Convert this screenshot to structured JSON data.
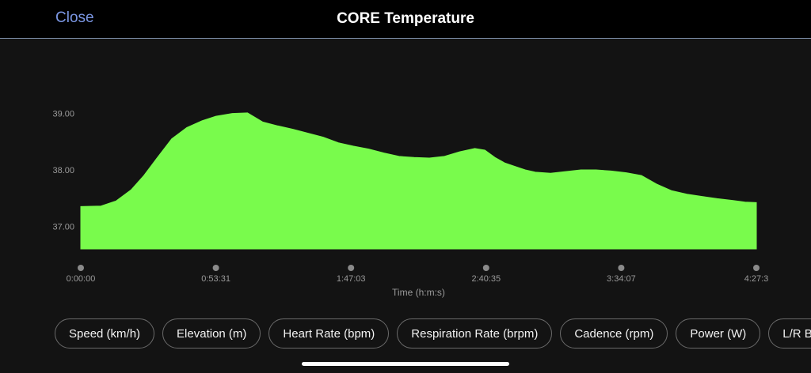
{
  "header": {
    "close_label": "Close",
    "title": "CORE Temperature"
  },
  "chart_data": {
    "type": "area",
    "title": "CORE Temperature",
    "xlabel": "Time (h:m:s)",
    "ylabel": "",
    "x_tick_labels": [
      "0:00:00",
      "0:53:31",
      "1:47:03",
      "2:40:35",
      "3:34:07",
      "4:27:3"
    ],
    "y_tick_values": [
      37.0,
      38.0,
      39.0
    ],
    "y_tick_labels": [
      "37.00",
      "38.00",
      "39.00"
    ],
    "ylim": [
      36.6,
      39.05
    ],
    "x_minutes_max": 267.5,
    "series": [
      {
        "name": "CORE Temperature",
        "color": "#79fb4c",
        "x": [
          0,
          8,
          14,
          20,
          25,
          30,
          36,
          42,
          48,
          53.5,
          60,
          66,
          72,
          78,
          84,
          90,
          96,
          102,
          108,
          114,
          120,
          126,
          132,
          138,
          144,
          150,
          156,
          160,
          164,
          168,
          172,
          176,
          180,
          186,
          192,
          198,
          204,
          210,
          216,
          222,
          228,
          234,
          240,
          246,
          252,
          258,
          263,
          267.5
        ],
        "values": [
          37.35,
          37.36,
          37.45,
          37.65,
          37.9,
          38.2,
          38.55,
          38.75,
          38.87,
          38.95,
          39.0,
          39.01,
          38.85,
          38.78,
          38.72,
          38.65,
          38.58,
          38.48,
          38.42,
          38.37,
          38.3,
          38.24,
          38.22,
          38.21,
          38.24,
          38.32,
          38.38,
          38.35,
          38.22,
          38.12,
          38.06,
          38.0,
          37.96,
          37.94,
          37.97,
          38.0,
          38.0,
          37.98,
          37.95,
          37.9,
          37.75,
          37.63,
          37.57,
          37.53,
          37.49,
          37.46,
          37.43,
          37.42
        ]
      }
    ]
  },
  "metric_tabs": [
    "Speed (km/h)",
    "Elevation (m)",
    "Heart Rate (bpm)",
    "Respiration Rate (brpm)",
    "Cadence (rpm)",
    "Power (W)",
    "L/R Ba"
  ]
}
